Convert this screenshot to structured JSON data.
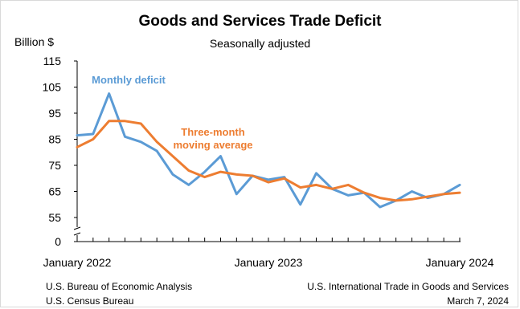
{
  "chart_data": {
    "type": "line",
    "title": "Goods and Services Trade Deficit",
    "subtitle": "Seasonally adjusted",
    "ylabel": "Billion $",
    "xlabel": "",
    "ylim": [
      0,
      115
    ],
    "axis_break": [
      0,
      55
    ],
    "yticks": [
      "0",
      "55",
      "65",
      "75",
      "85",
      "95",
      "105",
      "115"
    ],
    "x_tick_labels": [
      "January 2022",
      "January 2023",
      "January 2024"
    ],
    "x": [
      "Jan 2022",
      "Feb 2022",
      "Mar 2022",
      "Apr 2022",
      "May 2022",
      "Jun 2022",
      "Jul 2022",
      "Aug 2022",
      "Sep 2022",
      "Oct 2022",
      "Nov 2022",
      "Dec 2022",
      "Jan 2023",
      "Feb 2023",
      "Mar 2023",
      "Apr 2023",
      "May 2023",
      "Jun 2023",
      "Jul 2023",
      "Aug 2023",
      "Sep 2023",
      "Oct 2023",
      "Nov 2023",
      "Dec 2023",
      "Jan 2024"
    ],
    "grid": false,
    "series": [
      {
        "name": "Monthly deficit",
        "color": "#5b9bd5",
        "values": [
          86.5,
          87.0,
          102.5,
          86.0,
          84.0,
          80.5,
          71.5,
          67.5,
          72.5,
          78.5,
          64.0,
          71.0,
          69.5,
          70.5,
          60.0,
          72.0,
          66.0,
          63.5,
          64.5,
          59.0,
          61.5,
          65.0,
          62.5,
          64.0,
          67.5
        ]
      },
      {
        "name": "Three-month moving average",
        "color": "#ed7d31",
        "values": [
          82.0,
          85.0,
          92.0,
          92.0,
          91.0,
          84.0,
          78.5,
          73.0,
          70.5,
          72.5,
          71.5,
          71.0,
          68.5,
          70.0,
          66.5,
          67.5,
          66.0,
          67.5,
          64.5,
          62.5,
          61.5,
          62.0,
          63.0,
          64.0,
          64.5
        ]
      }
    ],
    "annotations": [
      {
        "text_lines": [
          "Monthly deficit"
        ],
        "color": "#5b9bd5"
      },
      {
        "text_lines": [
          "Three-month",
          "moving average"
        ],
        "color": "#ed7d31"
      }
    ]
  },
  "footer": {
    "left_line1": "U.S. Bureau of Economic Analysis",
    "left_line2": "U.S. Census Bureau",
    "right_line1": "U.S. International Trade in Goods and Services",
    "right_line2": "March 7, 2024"
  }
}
